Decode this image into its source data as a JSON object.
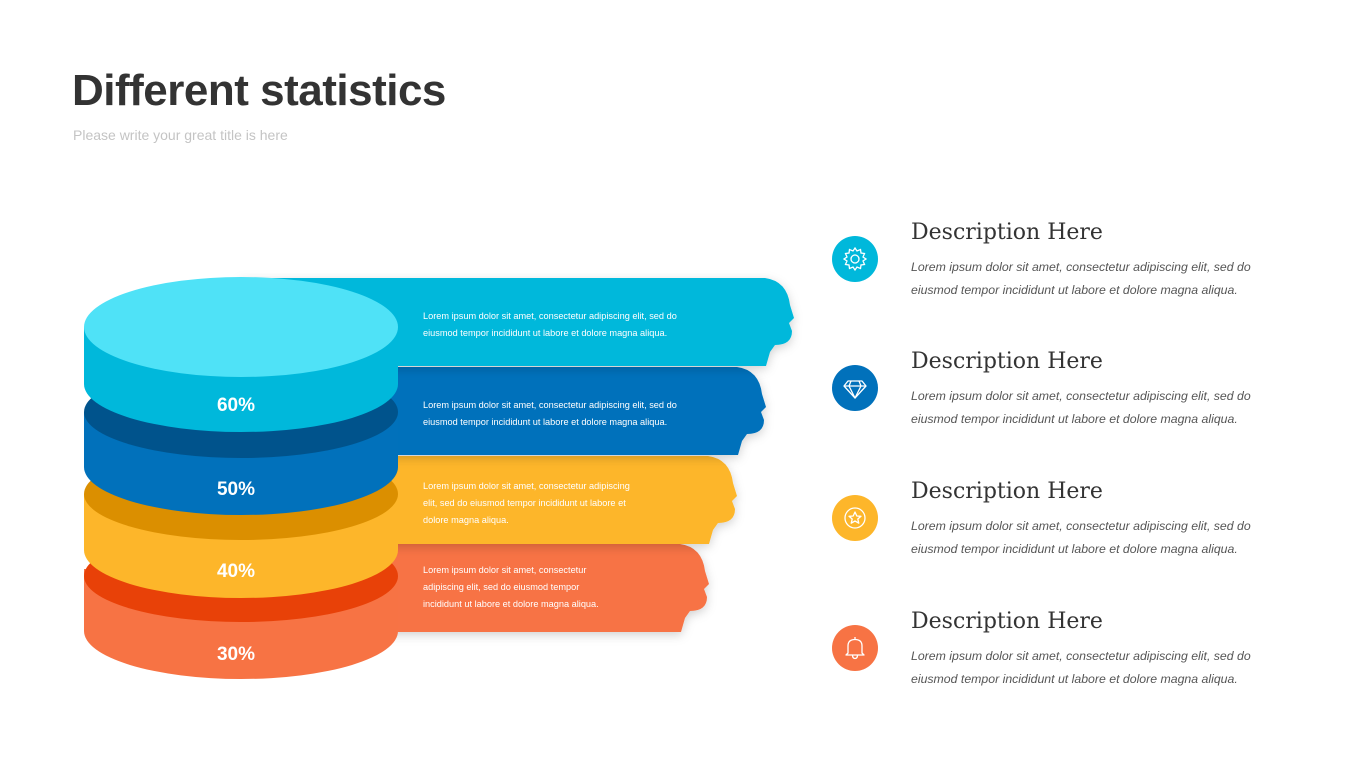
{
  "title": "Different statistics",
  "subtitle": "Please write your great title is here",
  "tiers": [
    {
      "label": "60%",
      "text": "Lorem ipsum dolor sit amet, consectetur adipiscing elit, sed do eiusmod tempor incididunt ut labore et dolore magna aliqua.",
      "text_lines": [
        "Lorem ipsum dolor sit amet, consectetur adipiscing elit, sed do",
        "eiusmod tempor incididunt ut labore et dolore magna aliqua."
      ],
      "color": "#00B8DB",
      "top_color": "#4FE2F7",
      "band_color": "#0292B5"
    },
    {
      "label": "50%",
      "text": "Lorem ipsum dolor sit amet, consectetur adipiscing elit, sed do eiusmod tempor incididunt ut labore et dolore magna aliqua.",
      "text_lines": [
        "Lorem ipsum dolor sit amet, consectetur adipiscing elit, sed do",
        "eiusmod tempor incididunt ut labore et dolore magna aliqua."
      ],
      "color": "#0171BB",
      "band_color": "#00538C"
    },
    {
      "label": "40%",
      "text": "Lorem ipsum dolor sit amet, consectetur adipiscing elit, sed do eiusmod tempor incididunt ut labore et dolore magna aliqua.",
      "text_lines": [
        "Lorem ipsum dolor sit amet, consectetur adipiscing",
        "elit, sed do eiusmod tempor incididunt ut labore et",
        "dolore magna aliqua."
      ],
      "color": "#FDB62A",
      "band_color": "#DB8F00"
    },
    {
      "label": "30%",
      "text": "Lorem ipsum dolor sit amet, consectetur adipiscing elit, sed do eiusmod tempor incididunt ut labore et dolore magna aliqua.",
      "text_lines": [
        "Lorem ipsum dolor sit amet, consectetur",
        "adipiscing elit, sed do eiusmod tempor",
        "incididunt ut labore et dolore magna aliqua."
      ],
      "color": "#F77344",
      "band_color": "#E84108"
    }
  ],
  "descriptions": [
    {
      "heading": "Description Here",
      "text": "Lorem ipsum dolor sit amet, consectetur  adipiscing elit, sed do eiusmod tempor incididunt ut labore et dolore magna aliqua.",
      "icon": "gear-icon",
      "color": "#00B8DB"
    },
    {
      "heading": "Description Here",
      "text": "Lorem ipsum dolor sit amet, consectetur  adipiscing elit, sed do eiusmod tempor incididunt ut labore et dolore magna aliqua.",
      "icon": "diamond-icon",
      "color": "#0171BB"
    },
    {
      "heading": "Description Here",
      "text": "Lorem ipsum dolor sit amet, consectetur  adipiscing elit, sed do eiusmod tempor incididunt ut labore et dolore magna aliqua.",
      "icon": "star-badge-icon",
      "color": "#FDB62A"
    },
    {
      "heading": "Description Here",
      "text": "Lorem ipsum dolor sit amet, consectetur  adipiscing elit, sed do eiusmod tempor incididunt ut labore et dolore magna aliqua.",
      "icon": "bell-icon",
      "color": "#F77344"
    }
  ]
}
